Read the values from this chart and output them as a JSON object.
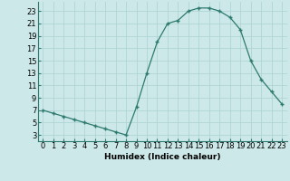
{
  "x": [
    0,
    1,
    2,
    3,
    4,
    5,
    6,
    7,
    8,
    9,
    10,
    11,
    12,
    13,
    14,
    15,
    16,
    17,
    18,
    19,
    20,
    21,
    22,
    23
  ],
  "y": [
    7,
    6.5,
    6.0,
    5.5,
    5.0,
    4.5,
    4.0,
    3.5,
    3.0,
    7.5,
    13.0,
    18.0,
    21.0,
    21.5,
    23.0,
    23.5,
    23.5,
    23.0,
    22.0,
    20.0,
    15.0,
    12.0,
    10.0,
    8.0
  ],
  "line_color": "#2d7a6e",
  "marker_color": "#2d7a6e",
  "bg_color": "#cde8e8",
  "grid_color": "#b0d4d4",
  "xlabel": "Humidex (Indice chaleur)",
  "xlabel_fontsize": 6.5,
  "ylabel_ticks": [
    3,
    5,
    7,
    9,
    11,
    13,
    15,
    17,
    19,
    21,
    23
  ],
  "xlim": [
    -0.5,
    23.5
  ],
  "ylim": [
    2.0,
    24.5
  ],
  "tick_fontsize": 6.0
}
